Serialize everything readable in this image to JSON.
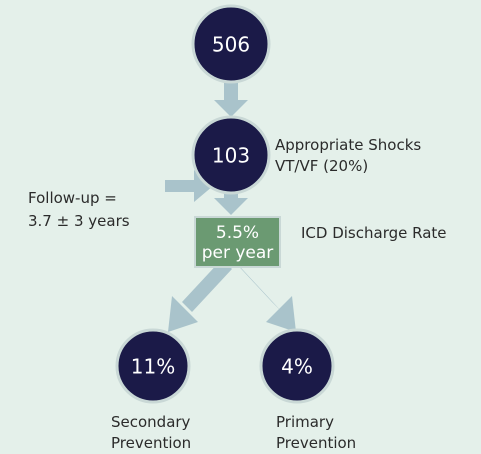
{
  "nodes": [
    {
      "label": "506"
    },
    {
      "label": "103",
      "note": [
        "Appropriate Shocks",
        "VT/VF (20%)"
      ]
    },
    {
      "label": [
        "5.5%",
        "per year"
      ],
      "note": "ICD Discharge Rate"
    },
    {
      "label": "11%",
      "note": [
        "Secondary",
        "Prevention"
      ]
    },
    {
      "label": "4%",
      "note": [
        "Primary",
        "Prevention"
      ]
    }
  ],
  "follow_up": [
    "Follow-up =",
    "3.7 ± 3 years"
  ]
}
